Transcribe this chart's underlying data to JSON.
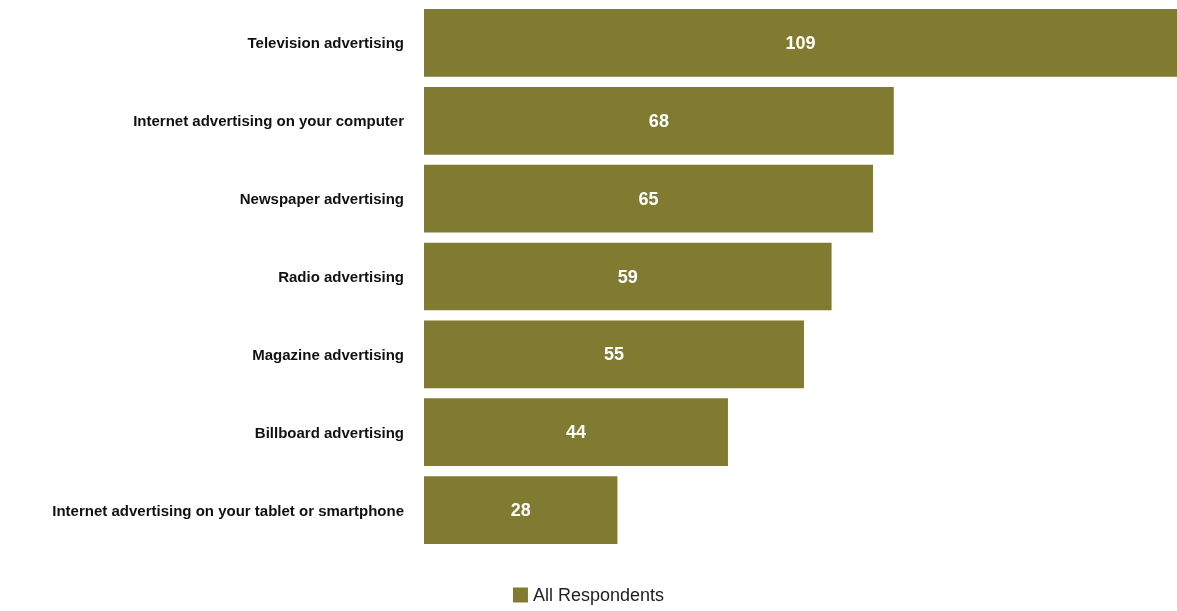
{
  "chart_data": {
    "type": "bar",
    "orientation": "horizontal",
    "categories": [
      "Television advertising",
      "Internet advertising on your computer",
      "Newspaper advertising",
      "Radio advertising",
      "Magazine advertising",
      "Billboard advertising",
      "Internet advertising on your tablet or smartphone"
    ],
    "series": [
      {
        "name": "All Respondents",
        "color": "#817b31",
        "values": [
          109,
          68,
          65,
          59,
          55,
          44,
          28
        ]
      }
    ],
    "data_labels": true,
    "legend": "bottom"
  }
}
